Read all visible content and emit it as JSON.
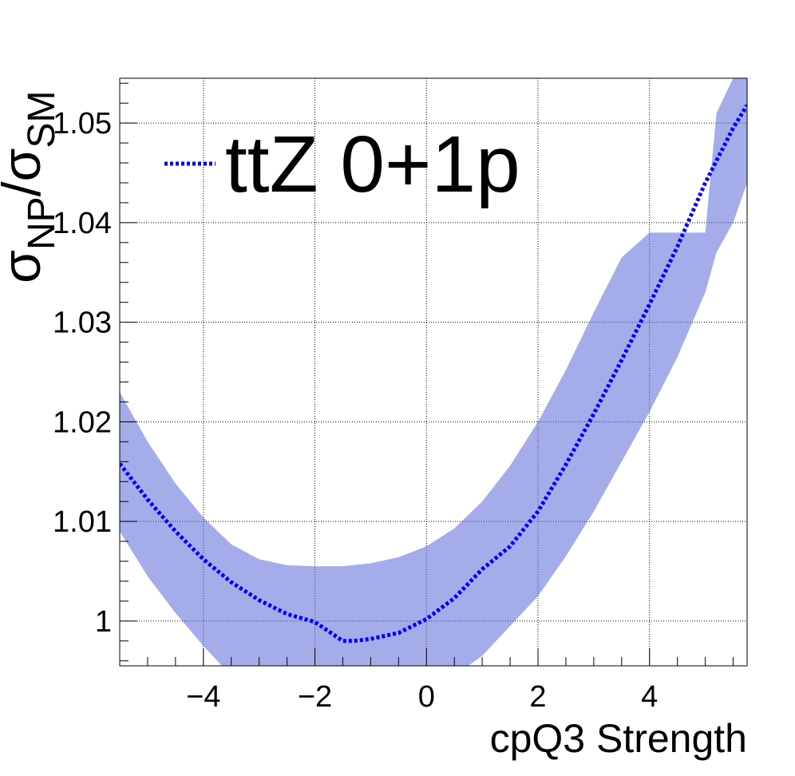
{
  "chart_data": {
    "type": "line",
    "title": "",
    "xlabel": "cpQ3 Strength",
    "ylabel_main": "σ",
    "ylabel_sub1": "NP",
    "ylabel_mid": "/σ",
    "ylabel_sub2": "SM",
    "xlim": [
      -5.5,
      5.75
    ],
    "ylim": [
      0.9955,
      1.0545
    ],
    "x_ticks": [
      -4,
      -2,
      0,
      2,
      4
    ],
    "x_tick_labels": [
      "−4",
      "−2",
      "0",
      "2",
      "4"
    ],
    "y_ticks": [
      1.0,
      1.01,
      1.02,
      1.03,
      1.04,
      1.05
    ],
    "y_tick_labels": [
      "1",
      "1.01",
      "1.02",
      "1.03",
      "1.04",
      "1.05"
    ],
    "grid": true,
    "legend": {
      "position": "top-left",
      "entries": [
        "ttZ 0+1p"
      ]
    },
    "series": [
      {
        "name": "ttZ 0+1p",
        "color": "#0000ff",
        "style": "dotted",
        "x": [
          -5.5,
          -5.0,
          -4.5,
          -4.0,
          -3.5,
          -3.0,
          -2.5,
          -2.0,
          -1.5,
          -1.3,
          -1.0,
          -0.5,
          0.0,
          0.5,
          1.0,
          1.5,
          2.0,
          2.5,
          3.0,
          3.5,
          4.0,
          4.5,
          5.0,
          5.5,
          5.75
        ],
        "y": [
          1.0158,
          1.0122,
          1.009,
          1.0062,
          1.0039,
          1.0021,
          1.0007,
          0.9999,
          0.998,
          0.998,
          0.9982,
          0.9988,
          1.0002,
          1.0023,
          1.0052,
          1.0075,
          1.011,
          1.0157,
          1.0208,
          1.0262,
          1.0318,
          1.0376,
          1.044,
          1.0495,
          1.0518
        ]
      }
    ],
    "band": {
      "color": "#5a6ad8",
      "x": [
        -5.5,
        -5.0,
        -4.5,
        -4.0,
        -3.5,
        -3.0,
        -2.5,
        -2.0,
        -1.5,
        -1.0,
        -0.5,
        0.0,
        0.5,
        1.0,
        1.5,
        2.0,
        2.5,
        3.0,
        3.5,
        4.0,
        4.5,
        5.0,
        5.2,
        5.5,
        5.75
      ],
      "upper": [
        1.023,
        1.018,
        1.0138,
        1.0104,
        1.0077,
        1.0062,
        1.0056,
        1.0055,
        1.0055,
        1.0058,
        1.0064,
        1.0075,
        1.0093,
        1.012,
        1.0156,
        1.02,
        1.0252,
        1.031,
        1.0365,
        1.039,
        1.039,
        1.039,
        1.051,
        1.0545,
        1.0545
      ],
      "lower": [
        1.009,
        1.0045,
        1.0008,
        0.9975,
        0.9945,
        0.9935,
        0.993,
        0.9925,
        0.992,
        0.992,
        0.9925,
        0.9935,
        0.9945,
        0.9965,
        0.9995,
        1.0025,
        1.0065,
        1.011,
        1.016,
        1.021,
        1.0265,
        1.033,
        1.037,
        1.04,
        1.044
      ]
    }
  }
}
